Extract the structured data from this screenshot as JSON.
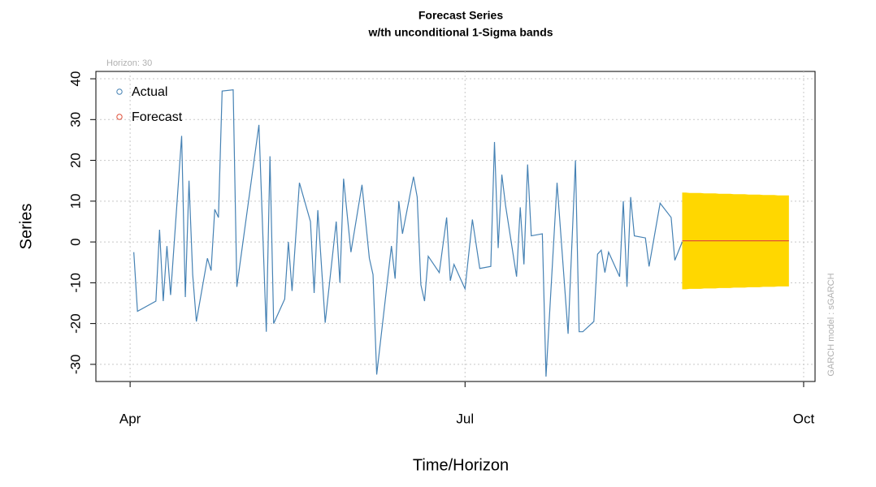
{
  "chart_data": {
    "type": "line",
    "title": "Forecast Series",
    "subtitle": "w/th unconditional 1-Sigma bands",
    "annotation": "Horizon: 30",
    "side_note": "GARCH model :  sGARCH",
    "xlabel": "Time/Horizon",
    "ylabel": "Series",
    "xlim": [
      -9.3,
      186.1
    ],
    "ylim": [
      -34.2,
      41.8
    ],
    "xticks": [
      {
        "value": 0,
        "label": "Apr"
      },
      {
        "value": 91,
        "label": "Jul"
      },
      {
        "value": 183,
        "label": "Oct"
      }
    ],
    "yticks": [
      -30,
      -20,
      -10,
      0,
      10,
      20,
      30,
      40
    ],
    "grid": true,
    "legend": "topleft",
    "series": [
      {
        "name": "Actual",
        "color": "#4682b4",
        "x": [
          1,
          2,
          7,
          8,
          9,
          10,
          11,
          14,
          15,
          16,
          17,
          18,
          21,
          22,
          23,
          24,
          25,
          28,
          29,
          35,
          37,
          38,
          39,
          42,
          43,
          44,
          46,
          49,
          50,
          51,
          53,
          56,
          57,
          58,
          60,
          63,
          65,
          66,
          67,
          71,
          72,
          73,
          74,
          77,
          78,
          79,
          80,
          81,
          84,
          86,
          87,
          88,
          91,
          93,
          95,
          98,
          99,
          100,
          101,
          102,
          105,
          106,
          107,
          108,
          109,
          112,
          113,
          116,
          119,
          121,
          122,
          123,
          126,
          127,
          128,
          129,
          130,
          133,
          134,
          135,
          136,
          137,
          140,
          141,
          144,
          147,
          148,
          150
        ],
        "values": [
          -2.5,
          -17,
          -14.5,
          3,
          -14.5,
          -1,
          -13,
          26,
          -13.5,
          15,
          -8,
          -19.5,
          -4,
          -7,
          8,
          6,
          37,
          37.3,
          -11,
          28.7,
          -22,
          21,
          -20,
          -14,
          0,
          -12,
          14.5,
          5,
          -12.5,
          7.8,
          -19.8,
          5,
          -10,
          15.5,
          -2.5,
          14,
          -4,
          -8,
          -32.5,
          -1,
          -9,
          10,
          2,
          16,
          11,
          -10.5,
          -14.5,
          -3.5,
          -7.5,
          6,
          -9.5,
          -5.5,
          -11.5,
          5.5,
          -6.5,
          -6,
          24.5,
          -1.5,
          16.5,
          9,
          -8.5,
          8.5,
          -5.5,
          19,
          1.5,
          2,
          -33,
          14.5,
          -22.5,
          20,
          -22,
          -22,
          -19.5,
          -3,
          -2,
          -7.5,
          -2.5,
          -8.5,
          10,
          -11,
          11,
          1.5,
          1,
          -6,
          9.5,
          6,
          -4.5,
          0
        ]
      },
      {
        "name": "Forecast",
        "color": "#e0503a",
        "x": [
          150,
          151,
          152,
          153,
          154,
          155,
          156,
          157,
          158,
          159,
          160,
          161,
          162,
          163,
          164,
          165,
          166,
          167,
          168,
          169,
          170,
          171,
          172,
          173,
          174,
          175,
          176,
          177,
          178,
          179
        ],
        "values": [
          0.3,
          0.3,
          0.3,
          0.3,
          0.3,
          0.3,
          0.3,
          0.3,
          0.3,
          0.3,
          0.3,
          0.3,
          0.3,
          0.3,
          0.3,
          0.3,
          0.3,
          0.3,
          0.3,
          0.3,
          0.3,
          0.3,
          0.3,
          0.3,
          0.3,
          0.3,
          0.3,
          0.3,
          0.3,
          0.3
        ]
      }
    ],
    "band": {
      "color": "#ffd700",
      "x": [
        150,
        151,
        152,
        153,
        154,
        155,
        156,
        157,
        158,
        159,
        160,
        161,
        162,
        163,
        164,
        165,
        166,
        167,
        168,
        169,
        170,
        171,
        172,
        173,
        174,
        175,
        176,
        177,
        178,
        179
      ],
      "upper": [
        12.1,
        12.1,
        12.0,
        12.0,
        12.0,
        12.0,
        11.9,
        11.9,
        11.9,
        11.9,
        11.8,
        11.8,
        11.8,
        11.8,
        11.7,
        11.7,
        11.7,
        11.7,
        11.6,
        11.6,
        11.6,
        11.6,
        11.5,
        11.5,
        11.5,
        11.5,
        11.4,
        11.4,
        11.4,
        11.4
      ],
      "lower": [
        -11.6,
        -11.6,
        -11.5,
        -11.5,
        -11.5,
        -11.5,
        -11.4,
        -11.4,
        -11.4,
        -11.4,
        -11.3,
        -11.3,
        -11.3,
        -11.3,
        -11.2,
        -11.2,
        -11.2,
        -11.2,
        -11.1,
        -11.1,
        -11.1,
        -11.1,
        -11.0,
        -11.0,
        -11.0,
        -11.0,
        -10.9,
        -10.9,
        -10.9,
        -10.9
      ]
    }
  }
}
